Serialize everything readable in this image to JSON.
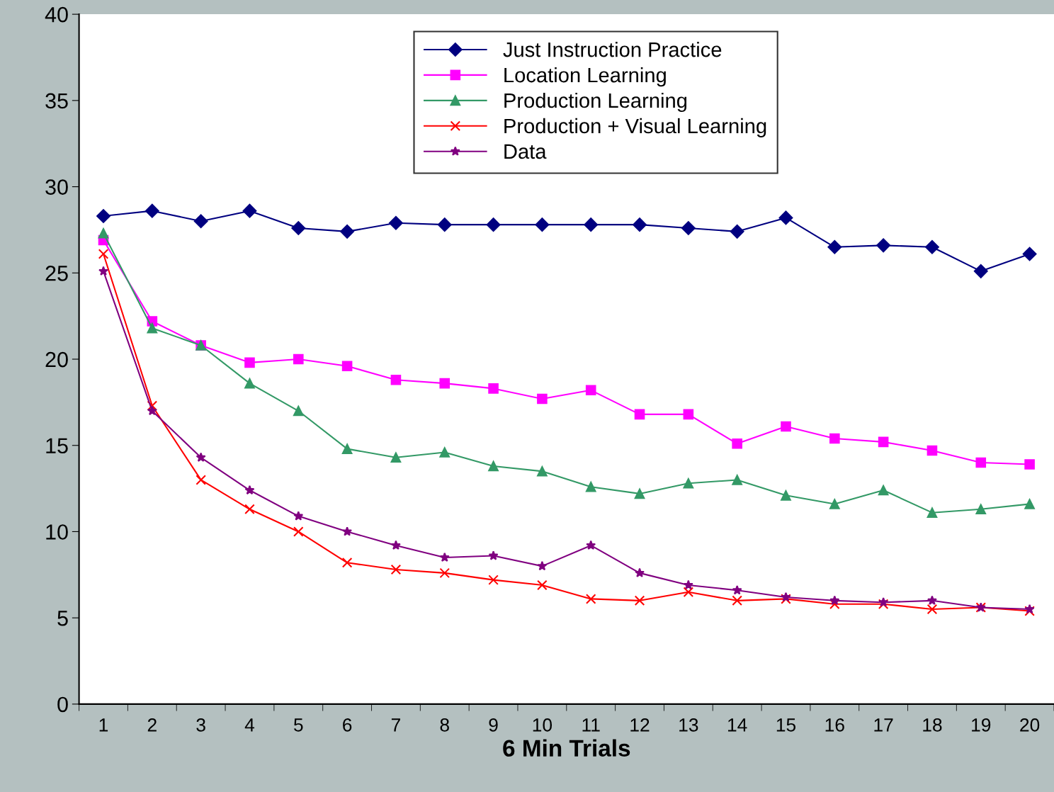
{
  "chart_data": {
    "type": "line",
    "xlabel": "6 Min Trials",
    "categories": [
      "1",
      "2",
      "3",
      "4",
      "5",
      "6",
      "7",
      "8",
      "9",
      "10",
      "11",
      "12",
      "13",
      "14",
      "15",
      "16",
      "17",
      "18",
      "19",
      "20"
    ],
    "ylim": [
      0,
      40
    ],
    "yticks": [
      0,
      5,
      10,
      15,
      20,
      25,
      30,
      35,
      40
    ],
    "grid": false,
    "legend": "top",
    "line_style": "solid",
    "series": [
      {
        "name": "Just Instruction Practice",
        "color": "#000080",
        "marker": "diamond",
        "values": [
          28.3,
          28.6,
          28.0,
          28.6,
          27.6,
          27.4,
          27.9,
          27.8,
          27.8,
          27.8,
          27.8,
          27.8,
          27.6,
          27.4,
          28.2,
          26.5,
          26.6,
          26.5,
          25.1,
          26.1
        ]
      },
      {
        "name": "Location Learning",
        "color": "#ff00ff",
        "marker": "square",
        "values": [
          26.9,
          22.2,
          20.8,
          19.8,
          20.0,
          19.6,
          18.8,
          18.6,
          18.3,
          17.7,
          18.2,
          16.8,
          16.8,
          15.1,
          16.1,
          15.4,
          15.2,
          14.7,
          14.0,
          13.9
        ]
      },
      {
        "name": "Production Learning",
        "color": "#339966",
        "marker": "triangle",
        "values": [
          27.3,
          21.8,
          20.8,
          18.6,
          17.0,
          14.8,
          14.3,
          14.6,
          13.8,
          13.5,
          12.6,
          12.2,
          12.8,
          13.0,
          12.1,
          11.6,
          12.4,
          11.1,
          11.3,
          11.6
        ]
      },
      {
        "name": "Production + Visual Learning",
        "color": "#ff0000",
        "marker": "cross",
        "values": [
          26.1,
          17.3,
          13.0,
          11.3,
          10.0,
          8.2,
          7.8,
          7.6,
          7.2,
          6.9,
          6.1,
          6.0,
          6.5,
          6.0,
          6.1,
          5.8,
          5.8,
          5.5,
          5.6,
          5.4
        ]
      },
      {
        "name": "Data",
        "color": "#800080",
        "marker": "star",
        "values": [
          25.1,
          17.0,
          14.3,
          12.4,
          10.9,
          10.0,
          9.2,
          8.5,
          8.6,
          8.0,
          9.2,
          7.6,
          6.9,
          6.6,
          6.2,
          6.0,
          5.9,
          6.0,
          5.6,
          5.5
        ]
      }
    ]
  }
}
